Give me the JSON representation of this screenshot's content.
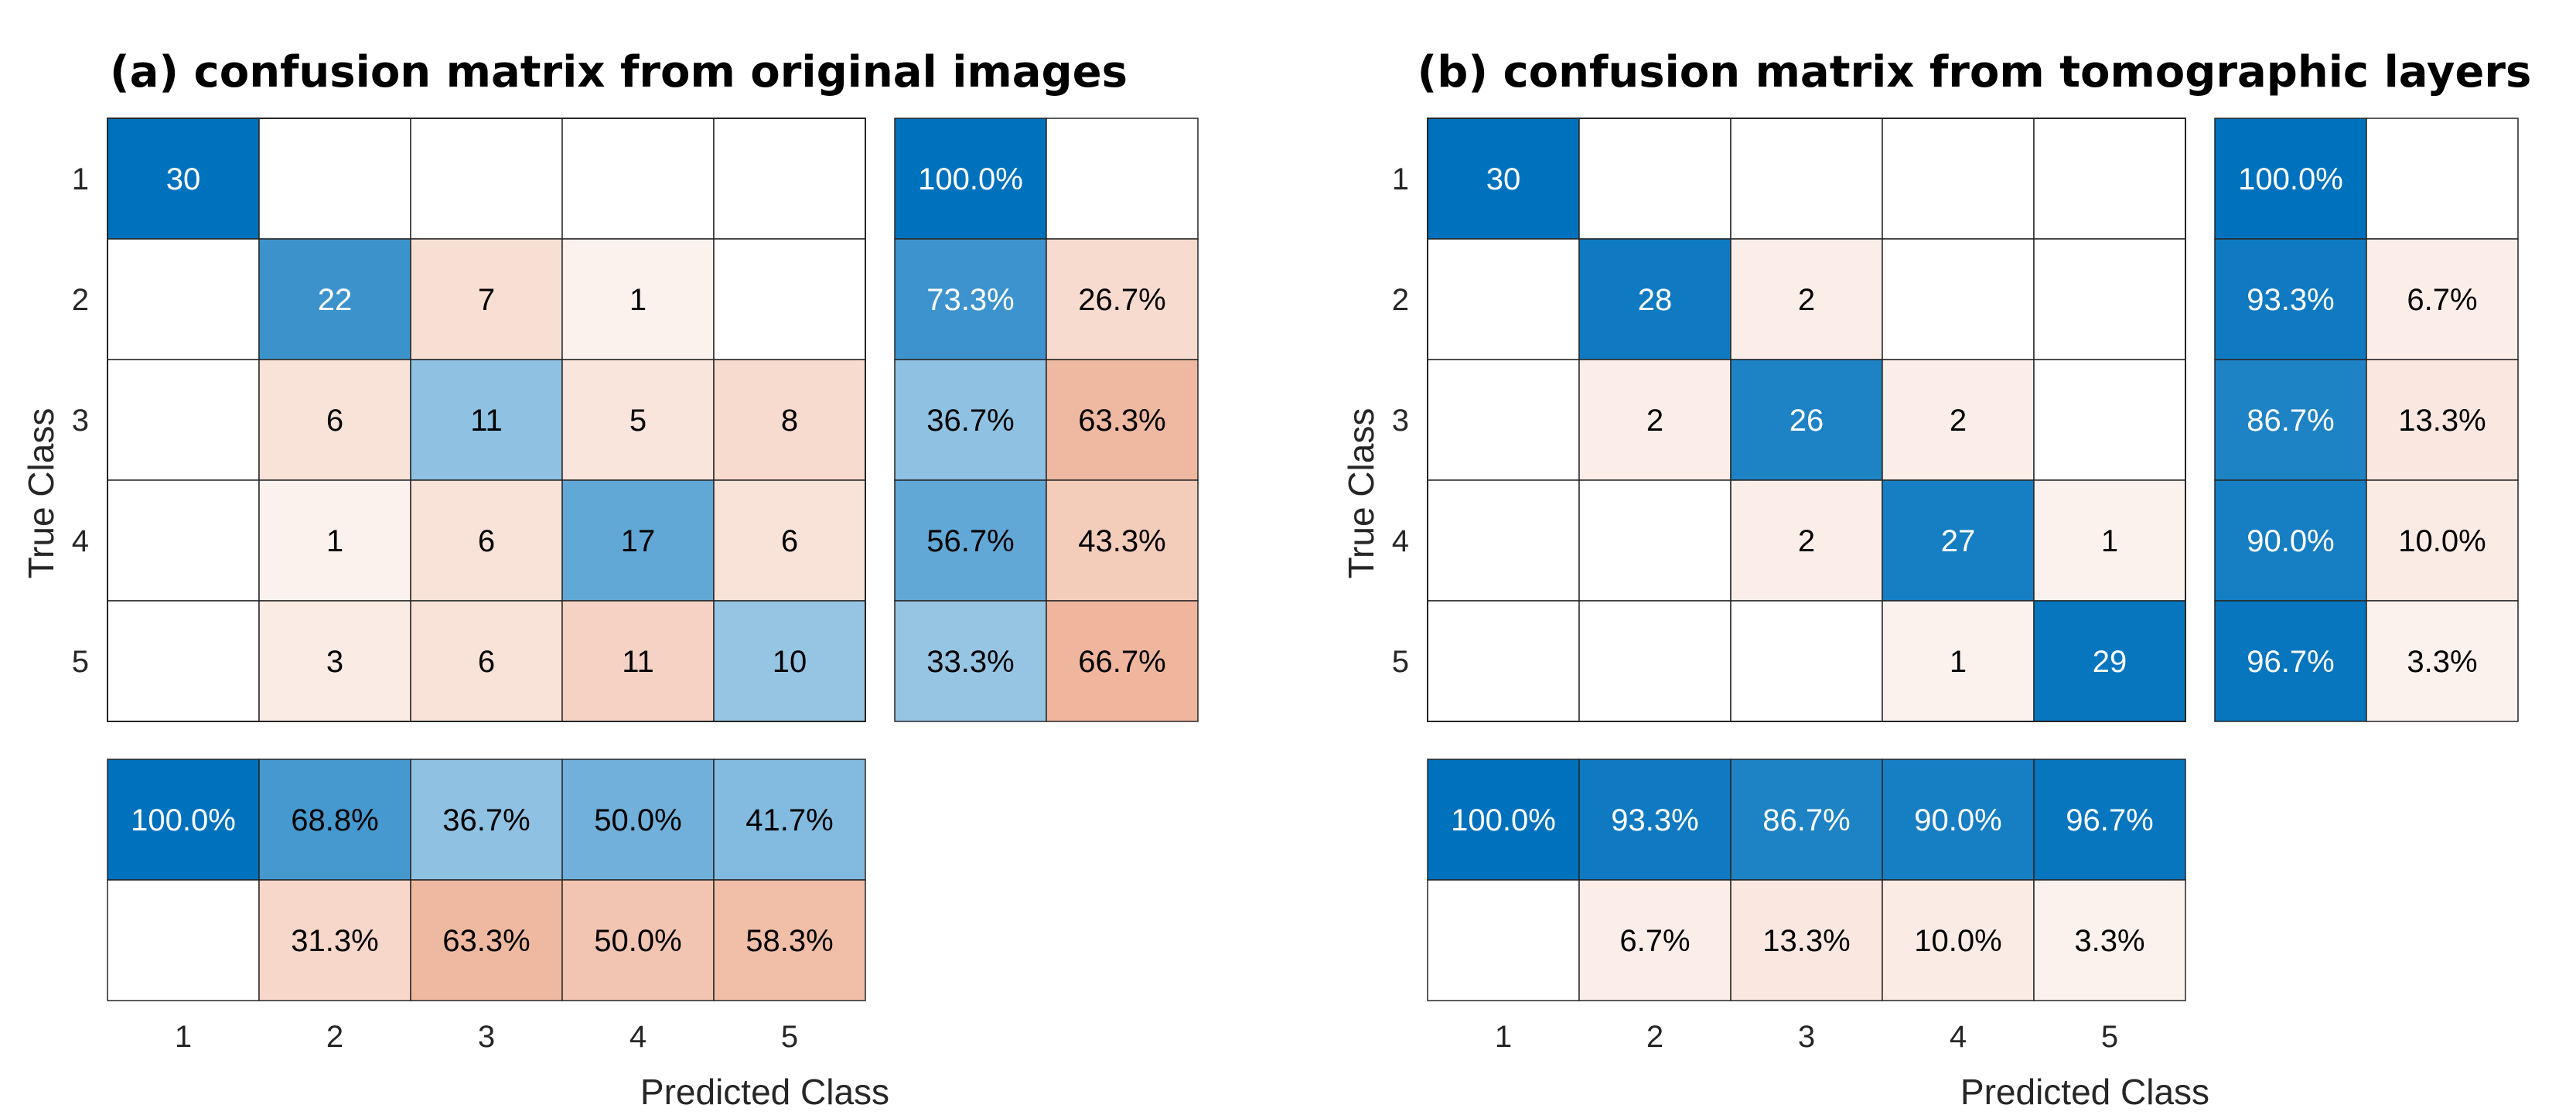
{
  "colors": {
    "blue": "#0072bd",
    "orange": "#d95319",
    "text_dark": "#000000",
    "text_light": "#ffffff"
  },
  "chart_data": [
    {
      "type": "heatmap",
      "title": "(a) confusion matrix from original images",
      "xlabel": "Predicted Class",
      "ylabel": "True Class",
      "classes": [
        "1",
        "2",
        "3",
        "4",
        "5"
      ],
      "matrix": [
        [
          30,
          0,
          0,
          0,
          0
        ],
        [
          0,
          22,
          7,
          1,
          0
        ],
        [
          0,
          6,
          11,
          5,
          8
        ],
        [
          0,
          1,
          6,
          17,
          6
        ],
        [
          0,
          3,
          6,
          11,
          10
        ]
      ],
      "row_summary": [
        [
          "100.0%",
          ""
        ],
        [
          "73.3%",
          "26.7%"
        ],
        [
          "36.7%",
          "63.3%"
        ],
        [
          "56.7%",
          "43.3%"
        ],
        [
          "33.3%",
          "66.7%"
        ]
      ],
      "column_summary": [
        [
          "100.0%",
          "68.8%",
          "36.7%",
          "50.0%",
          "41.7%"
        ],
        [
          "",
          "31.3%",
          "63.3%",
          "50.0%",
          "58.3%"
        ]
      ]
    },
    {
      "type": "heatmap",
      "title": "(b) confusion matrix from tomographic layers",
      "xlabel": "Predicted Class",
      "ylabel": "True Class",
      "classes": [
        "1",
        "2",
        "3",
        "4",
        "5"
      ],
      "matrix": [
        [
          30,
          0,
          0,
          0,
          0
        ],
        [
          0,
          28,
          2,
          0,
          0
        ],
        [
          0,
          2,
          26,
          2,
          0
        ],
        [
          0,
          0,
          2,
          27,
          1
        ],
        [
          0,
          0,
          0,
          1,
          29
        ]
      ],
      "row_summary": [
        [
          "100.0%",
          ""
        ],
        [
          "93.3%",
          "6.7%"
        ],
        [
          "86.7%",
          "13.3%"
        ],
        [
          "90.0%",
          "10.0%"
        ],
        [
          "96.7%",
          "3.3%"
        ]
      ],
      "column_summary": [
        [
          "100.0%",
          "93.3%",
          "86.7%",
          "90.0%",
          "96.7%"
        ],
        [
          "",
          "6.7%",
          "13.3%",
          "10.0%",
          "3.3%"
        ]
      ]
    }
  ]
}
